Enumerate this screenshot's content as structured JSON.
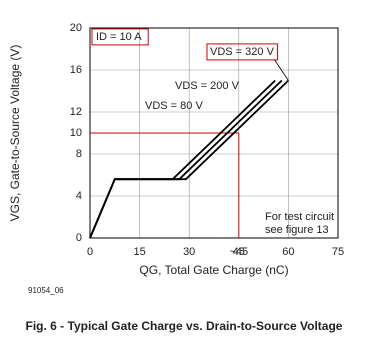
{
  "chart_data": {
    "type": "line",
    "caption": "Fig. 6 - Typical Gate Charge vs. Drain-to-Source Voltage",
    "figure_id": "91054_06",
    "x_label": "QG, Total Gate Charge (nC)",
    "y_label": "VGS, Gate-to-Source Voltage (V)",
    "condition": "ID = 10 A",
    "note": [
      "For test circuit",
      "see figure 13"
    ],
    "xlim": [
      0,
      75
    ],
    "xticks": [
      0,
      15,
      30,
      45,
      60,
      75
    ],
    "ylim": [
      0,
      20
    ],
    "yticks": [
      0,
      4,
      8,
      12,
      16,
      20
    ],
    "grid": true,
    "series": [
      {
        "name": "VDS = 80 V",
        "color": "#000000",
        "x": [
          0,
          7.5,
          25,
          56
        ],
        "values": [
          0,
          5.6,
          5.6,
          15
        ]
      },
      {
        "name": "VDS = 200 V",
        "color": "#000000",
        "x": [
          0,
          7.5,
          27,
          58
        ],
        "values": [
          0,
          5.6,
          5.6,
          15
        ]
      },
      {
        "name": "VDS = 320 V",
        "color": "#000000",
        "x": [
          0,
          7.5,
          29,
          60
        ],
        "values": [
          0,
          5.6,
          5.6,
          15
        ]
      }
    ],
    "marker": {
      "x": {
        "value": 45,
        "label": "~45"
      },
      "y": 10,
      "color": "#cc0000"
    }
  }
}
